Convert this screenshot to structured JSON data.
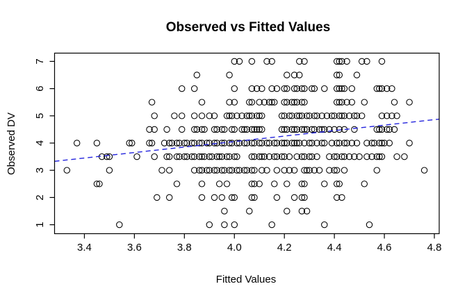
{
  "window": {
    "background": "#ffffff"
  },
  "chart_data": {
    "type": "scatter",
    "title": "Observed vs Fitted Values",
    "xlabel": "Fitted Values",
    "ylabel": "Observed DV",
    "x_ticks": {
      "values": [
        3.4,
        3.6,
        3.8,
        4.0,
        4.2,
        4.4,
        4.6,
        4.8
      ],
      "labels": [
        "3.4",
        "3.6",
        "3.8",
        "4.0",
        "4.2",
        "4.4",
        "4.6",
        "4.8"
      ]
    },
    "y_ticks": {
      "values": [
        1,
        2,
        3,
        4,
        5,
        6,
        7
      ],
      "labels": [
        "1",
        "2",
        "3",
        "4",
        "5",
        "6",
        "7"
      ]
    },
    "xlim": [
      3.2806,
      4.8194
    ],
    "ylim": [
      0.6709,
      7.3038
    ],
    "grid": false,
    "legend": false,
    "marker": {
      "shape": "open-circle",
      "color": "#000000",
      "radius_px": 4.2
    },
    "fit_line": {
      "style": "dashed",
      "color": "#2222dd",
      "x1": 3.2806,
      "y1": 3.33,
      "x2": 4.8194,
      "y2": 4.88
    },
    "points_by_row": [
      {
        "y": 7,
        "x": [
          4.0,
          4.02,
          4.07,
          4.13,
          4.15,
          4.26,
          4.28,
          4.41,
          4.42,
          4.43,
          4.45,
          4.51,
          4.53,
          4.59
        ]
      },
      {
        "y": 6.5,
        "x": [
          3.85,
          3.98,
          4.21,
          4.24,
          4.26,
          4.41,
          4.42,
          4.49
        ]
      },
      {
        "y": 6,
        "x": [
          3.79,
          3.84,
          4.0,
          4.07,
          4.09,
          4.11,
          4.15,
          4.17,
          4.2,
          4.21,
          4.24,
          4.25,
          4.27,
          4.28,
          4.31,
          4.32,
          4.36,
          4.41,
          4.42,
          4.43,
          4.44,
          4.47,
          4.57,
          4.58,
          4.59,
          4.61,
          4.63
        ]
      },
      {
        "y": 5.5,
        "x": [
          3.67,
          3.87,
          3.98,
          4.0,
          4.06,
          4.07,
          4.1,
          4.12,
          4.14,
          4.15,
          4.16,
          4.2,
          4.21,
          4.23,
          4.24,
          4.25,
          4.27,
          4.28,
          4.41,
          4.42,
          4.43,
          4.45,
          4.47,
          4.52,
          4.64,
          4.7
        ]
      },
      {
        "y": 5,
        "x": [
          3.68,
          3.76,
          3.79,
          3.84,
          3.87,
          3.9,
          3.92,
          3.97,
          3.98,
          3.99,
          4.01,
          4.03,
          4.05,
          4.06,
          4.07,
          4.09,
          4.1,
          4.11,
          4.19,
          4.2,
          4.22,
          4.23,
          4.25,
          4.26,
          4.27,
          4.29,
          4.3,
          4.32,
          4.33,
          4.35,
          4.37,
          4.39,
          4.4,
          4.42,
          4.43,
          4.44,
          4.46,
          4.48,
          4.49,
          4.51,
          4.59,
          4.61,
          4.63,
          4.65
        ]
      },
      {
        "y": 4.5,
        "x": [
          3.66,
          3.68,
          3.73,
          3.79,
          3.84,
          3.85,
          3.87,
          3.88,
          3.92,
          3.93,
          3.95,
          3.96,
          3.99,
          4.0,
          4.03,
          4.04,
          4.05,
          4.07,
          4.08,
          4.09,
          4.1,
          4.11,
          4.19,
          4.2,
          4.21,
          4.23,
          4.24,
          4.25,
          4.27,
          4.28,
          4.29,
          4.31,
          4.32,
          4.34,
          4.35,
          4.36,
          4.38,
          4.4,
          4.42,
          4.44,
          4.48,
          4.57,
          4.58,
          4.59,
          4.61,
          4.62,
          4.64
        ]
      },
      {
        "y": 4,
        "x": [
          3.37,
          3.45,
          3.58,
          3.59,
          3.66,
          3.67,
          3.72,
          3.74,
          3.75,
          3.77,
          3.78,
          3.8,
          3.81,
          3.83,
          3.84,
          3.86,
          3.87,
          3.89,
          3.9,
          3.92,
          3.93,
          3.95,
          3.96,
          3.98,
          3.99,
          4.01,
          4.02,
          4.04,
          4.05,
          4.07,
          4.08,
          4.1,
          4.11,
          4.13,
          4.14,
          4.16,
          4.17,
          4.19,
          4.2,
          4.21,
          4.23,
          4.24,
          4.25,
          4.26,
          4.28,
          4.3,
          4.31,
          4.33,
          4.35,
          4.36,
          4.39,
          4.41,
          4.42,
          4.44,
          4.45,
          4.47,
          4.49,
          4.53,
          4.55,
          4.56,
          4.58,
          4.59,
          4.6,
          4.62,
          4.7
        ]
      },
      {
        "y": 3.5,
        "x": [
          3.47,
          3.49,
          3.5,
          3.61,
          3.68,
          3.73,
          3.74,
          3.77,
          3.78,
          3.8,
          3.81,
          3.83,
          3.84,
          3.86,
          3.87,
          3.88,
          3.9,
          3.91,
          3.93,
          3.94,
          3.95,
          3.97,
          3.98,
          4.0,
          4.01,
          4.07,
          4.08,
          4.1,
          4.11,
          4.12,
          4.14,
          4.16,
          4.17,
          4.19,
          4.2,
          4.22,
          4.25,
          4.27,
          4.28,
          4.3,
          4.31,
          4.33,
          4.38,
          4.4,
          4.41,
          4.43,
          4.44,
          4.46,
          4.48,
          4.5,
          4.53,
          4.55,
          4.57,
          4.58,
          4.59,
          4.65,
          4.68
        ]
      },
      {
        "y": 3,
        "x": [
          3.33,
          3.5,
          3.71,
          3.74,
          3.84,
          3.86,
          3.87,
          3.89,
          3.9,
          3.92,
          3.93,
          3.95,
          3.96,
          3.98,
          3.99,
          4.01,
          4.02,
          4.04,
          4.05,
          4.07,
          4.08,
          4.11,
          4.13,
          4.17,
          4.2,
          4.22,
          4.24,
          4.28,
          4.29,
          4.3,
          4.32,
          4.34,
          4.38,
          4.4,
          4.41,
          4.44,
          4.57,
          4.76
        ]
      },
      {
        "y": 2.5,
        "x": [
          3.45,
          3.46,
          3.77,
          3.87,
          3.94,
          3.97,
          4.07,
          4.08,
          4.1,
          4.16,
          4.21,
          4.27,
          4.28,
          4.36,
          4.41,
          4.42,
          4.52
        ]
      },
      {
        "y": 2,
        "x": [
          3.69,
          3.74,
          3.87,
          3.92,
          3.95,
          3.99,
          4.0,
          4.07,
          4.08,
          4.17,
          4.24,
          4.27,
          4.28,
          4.41,
          4.43
        ]
      },
      {
        "y": 1.5,
        "x": [
          3.96,
          4.06,
          4.21,
          4.27,
          4.29
        ]
      },
      {
        "y": 1,
        "x": [
          3.54,
          3.9,
          3.96,
          4.0,
          4.15,
          4.36,
          4.54
        ]
      }
    ]
  }
}
